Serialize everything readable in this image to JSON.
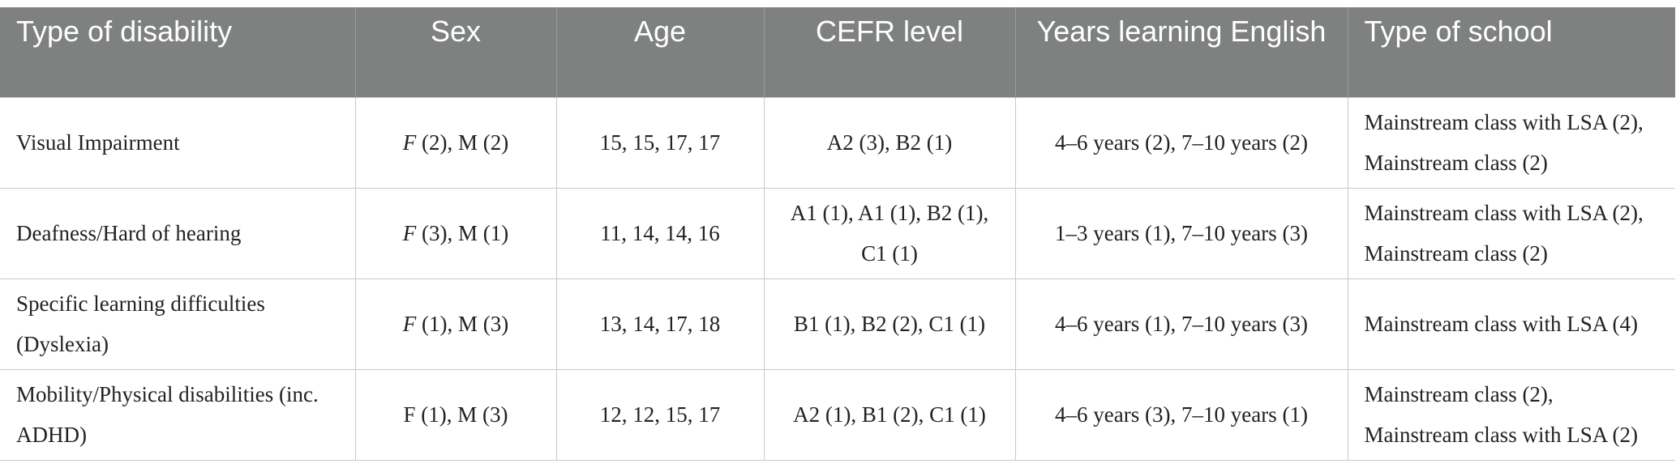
{
  "table": {
    "headers": [
      "Type of disability",
      "Sex",
      "Age",
      "CEFR level",
      "Years learning English",
      "Type of school"
    ],
    "rows": [
      {
        "disability": "Visual Impairment",
        "sex_f": "F",
        "sex_rest": " (2), M (2)",
        "age": "15, 15, 17, 17",
        "cefr": "A2 (3), B2 (1)",
        "years": "4–6 years (2), 7–10 years (2)",
        "school": "Mainstream class with LSA (2), Mainstream class (2)"
      },
      {
        "disability": "Deafness/Hard of hearing",
        "sex_f": "F",
        "sex_rest": " (3), M (1)",
        "age": "11, 14, 14, 16",
        "cefr": "A1 (1), A1 (1), B2 (1), C1 (1)",
        "years": "1–3 years (1), 7–10 years (3)",
        "school": "Mainstream class with LSA (2), Mainstream class (2)"
      },
      {
        "disability": "Specific learning difficulties (Dyslexia)",
        "sex_f": "F",
        "sex_rest": " (1), M (3)",
        "age": "13, 14, 17, 18",
        "cefr": "B1 (1), B2 (2), C1 (1)",
        "years": "4–6 years (1), 7–10 years (3)",
        "school": "Mainstream class with LSA (4)"
      },
      {
        "disability": "Mobility/Physical disabilities (inc. ADHD)",
        "sex": "F (1), M (3)",
        "age": "12, 12, 15, 17",
        "cefr": "A2 (1), B1 (2), C1 (1)",
        "years": "4–6 years (3), 7–10 years (1)",
        "school_line1": "Mainstream class (2),",
        "school_line2": "Mainstream class with LSA (2)"
      }
    ]
  }
}
